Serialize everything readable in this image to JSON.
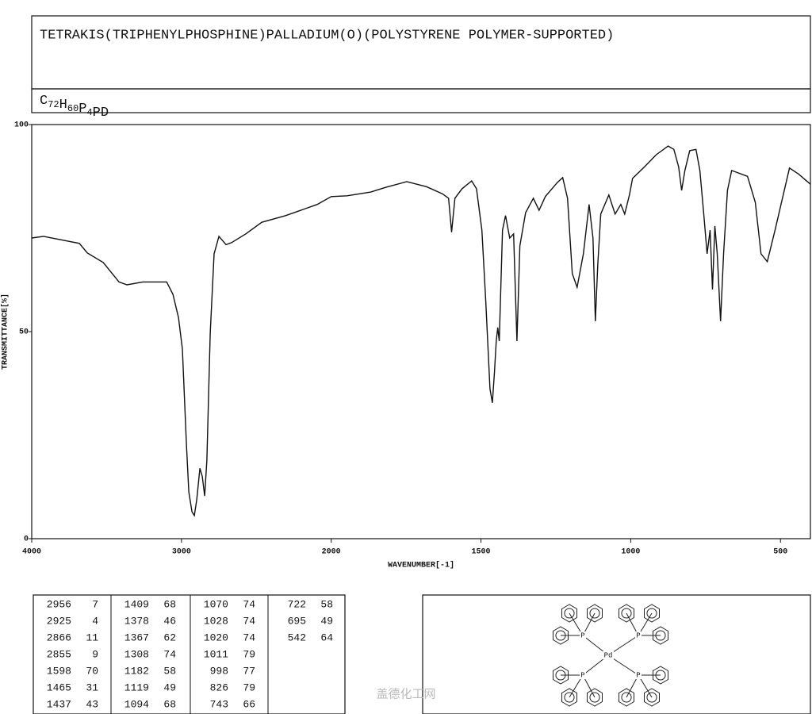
{
  "title": "TETRAKIS(TRIPHENYLPHOSPHINE)PALLADIUM(O)(POLYSTYRENE POLYMER-SUPPORTED)",
  "formula": "C72H60P4PD",
  "chart_data": {
    "type": "line",
    "x_label": "WAVENUMBER[-1]",
    "y_label": "TRANSMITTANCE[%]",
    "x": [
      4000,
      3921,
      3682,
      3629,
      3523,
      3417,
      3364,
      3258,
      3099,
      3057,
      3020,
      2994,
      2967,
      2951,
      2930,
      2914,
      2898,
      2877,
      2861,
      2845,
      2830,
      2808,
      2782,
      2750,
      2702,
      2665,
      2570,
      2464,
      2305,
      2093,
      2000,
      1947,
      1868,
      1815,
      1748,
      1682,
      1629,
      1608,
      1598,
      1587,
      1563,
      1531,
      1515,
      1497,
      1484,
      1470,
      1462,
      1455,
      1449,
      1444,
      1439,
      1428,
      1418,
      1404,
      1391,
      1380,
      1370,
      1351,
      1325,
      1306,
      1285,
      1245,
      1227,
      1211,
      1195,
      1179,
      1158,
      1139,
      1126,
      1118,
      1110,
      1100,
      1073,
      1052,
      1033,
      1020,
      1004,
      994,
      954,
      915,
      875,
      856,
      840,
      830,
      819,
      803,
      782,
      769,
      756,
      745,
      735,
      727,
      719,
      711,
      700,
      690,
      677,
      663,
      610,
      584,
      565,
      544,
      518,
      470,
      439,
      400
    ],
    "values": [
      72.6,
      73,
      71.3,
      69,
      66.7,
      62,
      61.3,
      62,
      62,
      59,
      53.4,
      45.8,
      22.8,
      11.3,
      6.5,
      5.6,
      9.4,
      17,
      15,
      10.3,
      19,
      49.6,
      68.8,
      73,
      71,
      71.5,
      73.6,
      76.4,
      78,
      80.7,
      82.6,
      82.8,
      83.7,
      84.9,
      86.2,
      85,
      83.3,
      82.2,
      74,
      82.2,
      84.5,
      86.4,
      84.5,
      74.5,
      57.3,
      36.2,
      32.8,
      40,
      47.7,
      51,
      47.7,
      74.5,
      78,
      72.6,
      73.6,
      47.7,
      70.7,
      78.7,
      82.2,
      79.3,
      82.6,
      86,
      87.2,
      82.2,
      64,
      60.7,
      68.8,
      80.7,
      72.6,
      52.5,
      66,
      78.4,
      83,
      78.4,
      80.7,
      78.4,
      83.1,
      87,
      89.8,
      92.7,
      94.8,
      94,
      89.8,
      84.1,
      88.9,
      93.7,
      94,
      88.9,
      78.4,
      68.8,
      74.5,
      60.2,
      75.5,
      68.8,
      52.5,
      68.8,
      84.1,
      88.9,
      87.5,
      81.2,
      68.8,
      66.9,
      74.5,
      89.5,
      88,
      85.6
    ],
    "color": "#111111",
    "xlim": [
      4000,
      400
    ],
    "ylim": [
      0,
      100
    ],
    "xticks": [
      4000,
      3000,
      2000,
      1500,
      1000,
      500
    ],
    "yticks": [
      0,
      50,
      100
    ]
  },
  "peak_table": [
    [
      2956,
      7
    ],
    [
      2925,
      4
    ],
    [
      2866,
      11
    ],
    [
      2855,
      9
    ],
    [
      1598,
      70
    ],
    [
      1465,
      31
    ],
    [
      1437,
      43
    ],
    [
      1409,
      68
    ],
    [
      1378,
      46
    ],
    [
      1367,
      62
    ],
    [
      1308,
      74
    ],
    [
      1182,
      58
    ],
    [
      1119,
      49
    ],
    [
      1094,
      68
    ],
    [
      1070,
      74
    ],
    [
      1028,
      74
    ],
    [
      1020,
      74
    ],
    [
      1011,
      79
    ],
    [
      998,
      77
    ],
    [
      826,
      79
    ],
    [
      743,
      66
    ],
    [
      722,
      58
    ],
    [
      695,
      49
    ],
    [
      542,
      64
    ]
  ],
  "structure": {
    "atoms": [
      "P",
      "P",
      "P",
      "P",
      "Pd"
    ]
  },
  "watermark": "盖德化工网"
}
